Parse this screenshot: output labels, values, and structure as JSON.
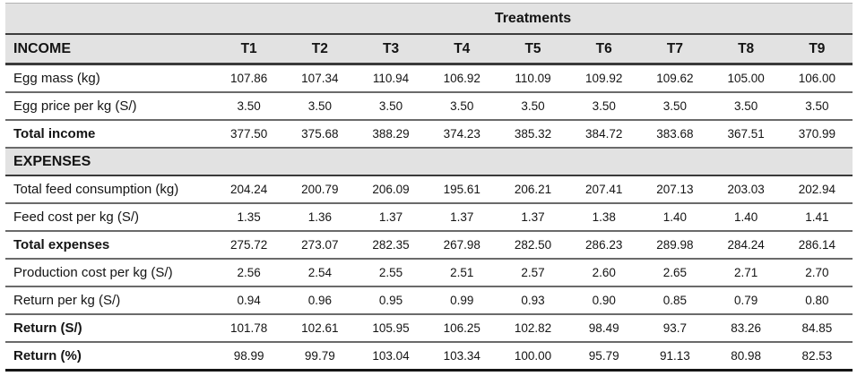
{
  "table": {
    "treatments_title": "Treatments",
    "income_title": "INCOME",
    "columns": [
      "T1",
      "T2",
      "T3",
      "T4",
      "T5",
      "T6",
      "T7",
      "T8",
      "T9"
    ],
    "rows": [
      {
        "label": "Egg mass (kg)",
        "bold": false,
        "section": false,
        "values": [
          "107.86",
          "107.34",
          "110.94",
          "106.92",
          "110.09",
          "109.92",
          "109.62",
          "105.00",
          "106.00"
        ]
      },
      {
        "label": "Egg price per kg (S/)",
        "bold": false,
        "section": false,
        "values": [
          "3.50",
          "3.50",
          "3.50",
          "3.50",
          "3.50",
          "3.50",
          "3.50",
          "3.50",
          "3.50"
        ]
      },
      {
        "label": "Total income",
        "bold": true,
        "section": false,
        "values": [
          "377.50",
          "375.68",
          "388.29",
          "374.23",
          "385.32",
          "384.72",
          "383.68",
          "367.51",
          "370.99"
        ]
      },
      {
        "label": "EXPENSES",
        "bold": true,
        "section": true,
        "values": []
      },
      {
        "label": "Total feed consumption (kg)",
        "bold": false,
        "section": false,
        "values": [
          "204.24",
          "200.79",
          "206.09",
          "195.61",
          "206.21",
          "207.41",
          "207.13",
          "203.03",
          "202.94"
        ]
      },
      {
        "label": "Feed cost per kg (S/)",
        "bold": false,
        "section": false,
        "values": [
          "1.35",
          "1.36",
          "1.37",
          "1.37",
          "1.37",
          "1.38",
          "1.40",
          "1.40",
          "1.41"
        ]
      },
      {
        "label": "Total expenses",
        "bold": true,
        "section": false,
        "values": [
          "275.72",
          "273.07",
          "282.35",
          "267.98",
          "282.50",
          "286.23",
          "289.98",
          "284.24",
          "286.14"
        ]
      },
      {
        "label": "Production cost per kg (S/)",
        "bold": false,
        "section": false,
        "values": [
          "2.56",
          "2.54",
          "2.55",
          "2.51",
          "2.57",
          "2.60",
          "2.65",
          "2.71",
          "2.70"
        ]
      },
      {
        "label": "Return per kg (S/)",
        "bold": false,
        "section": false,
        "values": [
          "0.94",
          "0.96",
          "0.95",
          "0.99",
          "0.93",
          "0.90",
          "0.85",
          "0.79",
          "0.80"
        ]
      },
      {
        "label": "Return (S/)",
        "bold": true,
        "section": false,
        "values": [
          "101.78",
          "102.61",
          "105.95",
          "106.25",
          "102.82",
          "98.49",
          "93.7",
          "83.26",
          "84.85"
        ]
      },
      {
        "label": "Return (%)",
        "bold": true,
        "section": false,
        "values": [
          "98.99",
          "99.79",
          "103.04",
          "103.34",
          "100.00",
          "95.79",
          "91.13",
          "80.98",
          "82.53"
        ]
      }
    ],
    "colors": {
      "header_bg": "#e2e2e2",
      "rule_dark": "#3a3a3a",
      "rule_mid": "#6a6a6a",
      "bottom_rule": "#151515",
      "text": "#141414"
    }
  }
}
